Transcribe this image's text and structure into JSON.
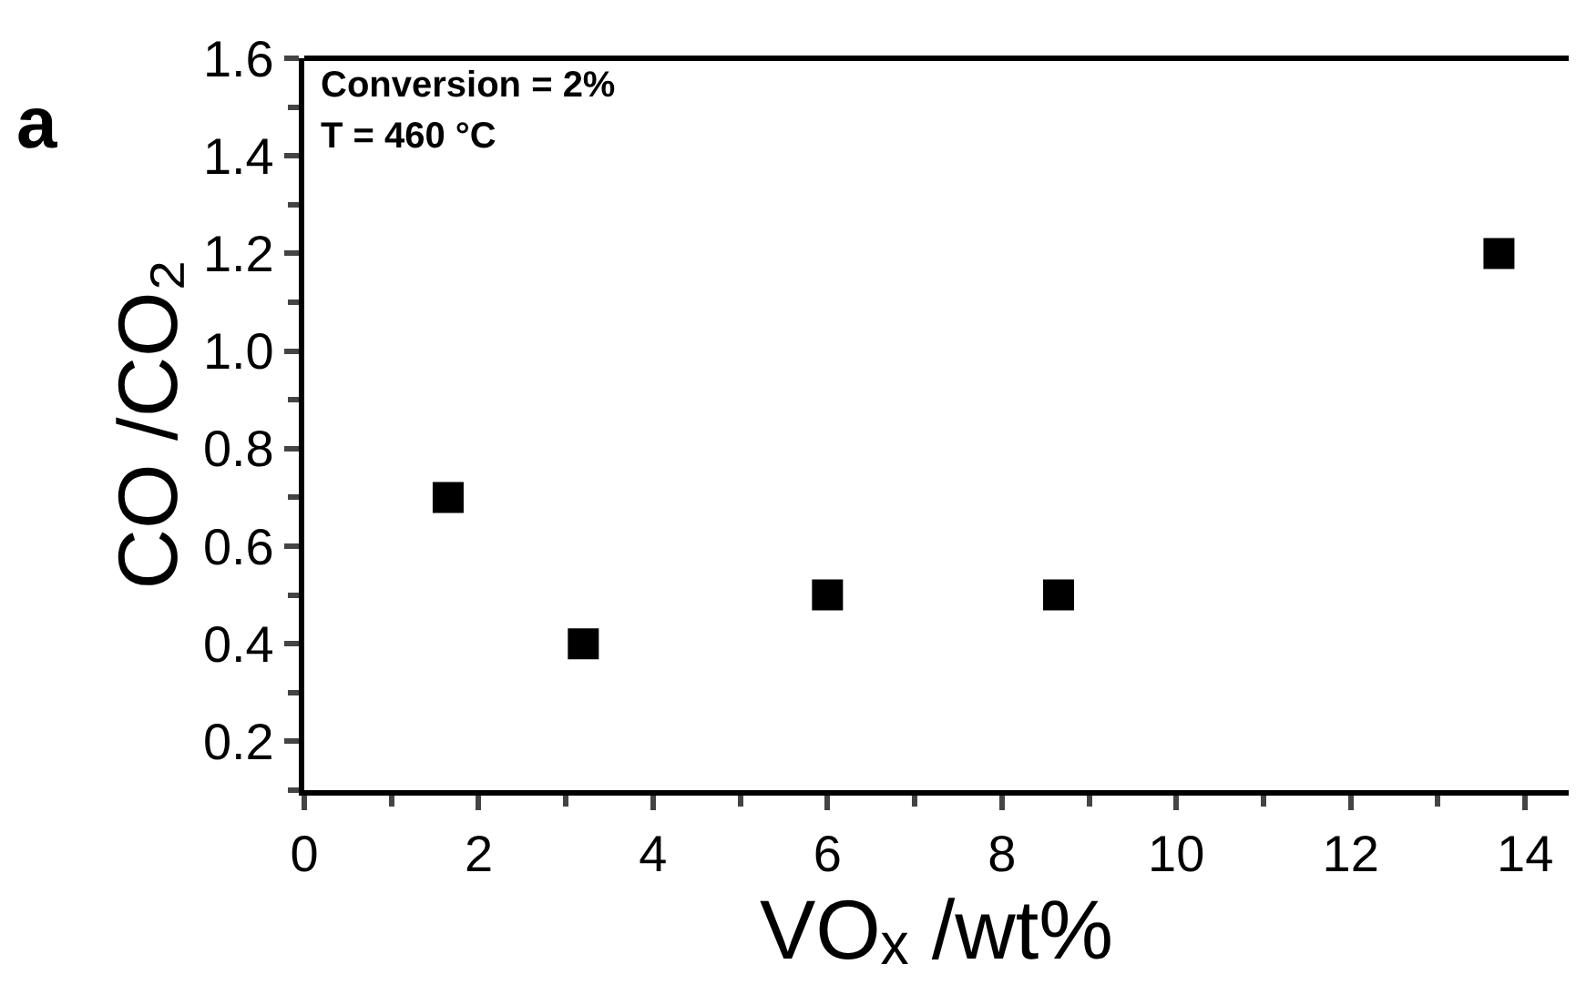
{
  "chart_data": {
    "type": "scatter",
    "xlabel": "VOₓ /wt%",
    "ylabel": "CO /CO₂",
    "annotations": [
      "a",
      "Conversion = 2%",
      "T = 460 °C"
    ],
    "x": [
      1.65,
      3.2,
      6,
      8.65,
      13.7
    ],
    "series": [
      {
        "color": "#000000",
        "values": [
          0.7,
          0.4,
          0.5,
          0.5,
          1.2
        ]
      }
    ],
    "xlim": [
      0,
      14.5
    ],
    "xticks": [
      0,
      2,
      4,
      6,
      8,
      10,
      12,
      14
    ],
    "ylim": [
      0.1,
      1.6
    ],
    "yticks": [
      0.2,
      0.4,
      0.6,
      0.8,
      {
        "value": 1,
        "label": "1.0"
      },
      1.2,
      1.4,
      1.6
    ],
    "marker": "square"
  }
}
